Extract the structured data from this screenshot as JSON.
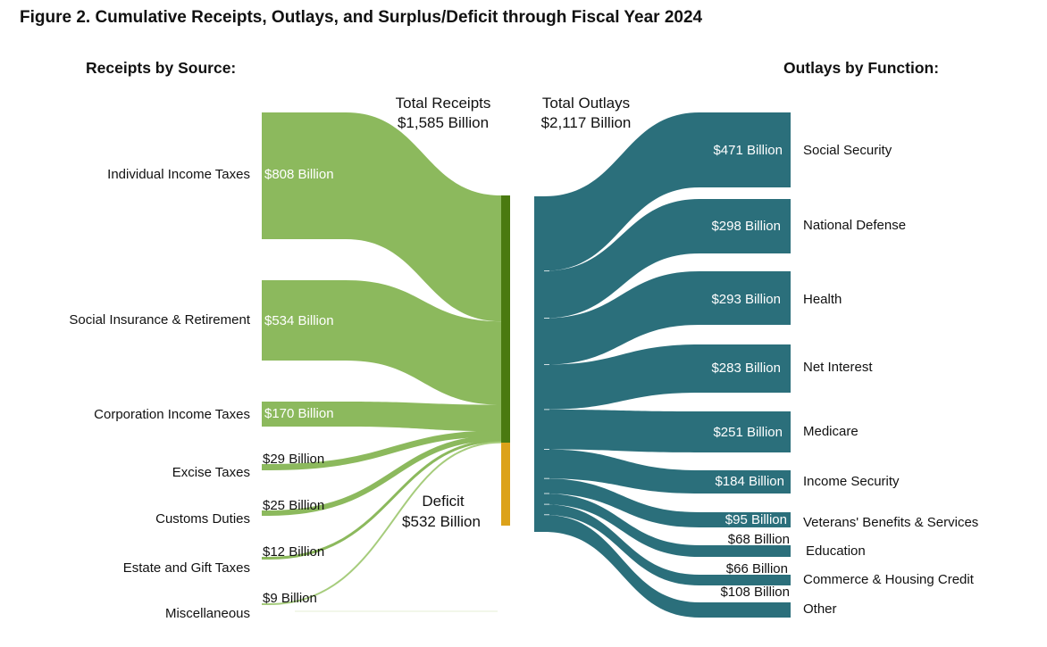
{
  "chart_data": {
    "type": "sankey",
    "title": "Figure 2. Cumulative Receipts, Outlays, and Surplus/Deficit through Fiscal Year 2024",
    "receipts_heading": "Receipts by Source:",
    "outlays_heading": "Outlays by Function:",
    "total_receipts": {
      "label": "Total Receipts",
      "value_label": "$1,585 Billion",
      "value": 1585
    },
    "total_outlays": {
      "label": "Total Outlays",
      "value_label": "$2,117 Billion",
      "value": 2117
    },
    "deficit": {
      "label": "Deficit",
      "value_label": "$532 Billion",
      "value": 532
    },
    "receipts": [
      {
        "name": "Individual Income Taxes",
        "value": 808,
        "value_label": "$808 Billion"
      },
      {
        "name": "Social Insurance & Retirement",
        "value": 534,
        "value_label": "$534 Billion"
      },
      {
        "name": "Corporation Income Taxes",
        "value": 170,
        "value_label": "$170 Billion"
      },
      {
        "name": "Excise Taxes",
        "value": 29,
        "value_label": "$29 Billion"
      },
      {
        "name": "Customs Duties",
        "value": 25,
        "value_label": "$25 Billion"
      },
      {
        "name": "Estate and Gift Taxes",
        "value": 12,
        "value_label": "$12 Billion"
      },
      {
        "name": "Miscellaneous",
        "value": 9,
        "value_label": "$9 Billion"
      }
    ],
    "outlays": [
      {
        "name": "Social Security",
        "value": 471,
        "value_label": "$471 Billion"
      },
      {
        "name": "National Defense",
        "value": 298,
        "value_label": "$298 Billion"
      },
      {
        "name": "Health",
        "value": 293,
        "value_label": "$293 Billion"
      },
      {
        "name": "Net Interest",
        "value": 283,
        "value_label": "$283 Billion"
      },
      {
        "name": "Medicare",
        "value": 251,
        "value_label": "$251 Billion"
      },
      {
        "name": "Income Security",
        "value": 184,
        "value_label": "$184 Billion"
      },
      {
        "name": "Veterans' Benefits & Services",
        "value": 95,
        "value_label": "$95 Billion"
      },
      {
        "name": "Education",
        "value": 68,
        "value_label": "$68 Billion"
      },
      {
        "name": "Commerce & Housing Credit",
        "value": 66,
        "value_label": "$66 Billion"
      },
      {
        "name": "Other",
        "value": 108,
        "value_label": "$108 Billion"
      }
    ],
    "colors": {
      "receipts": "#8cb95d",
      "receipts_bar": "#4a7a10",
      "deficit_bar": "#dca21a",
      "outlays": "#2b6f7b"
    }
  }
}
